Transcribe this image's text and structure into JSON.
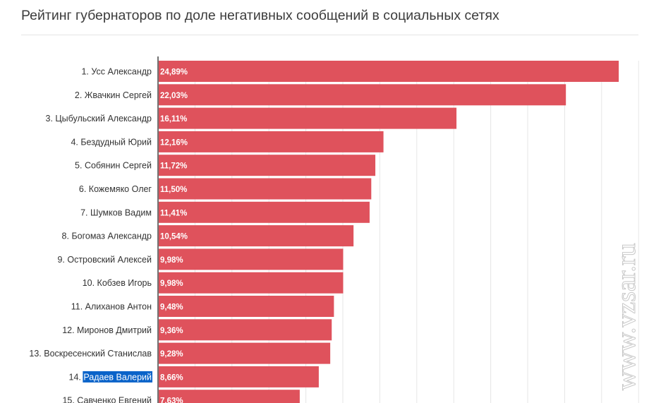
{
  "title": "Рейтинг губернаторов по доле негативных сообщений в социальных сетях",
  "watermark": "www.vzsar.ru",
  "colors": {
    "bar": "#df525c",
    "grid": "#e6e6e6",
    "axis": "#444444",
    "selection": "#0a63c9"
  },
  "selected_category_index": 13,
  "chart_data": {
    "type": "bar",
    "orientation": "horizontal",
    "title": "Рейтинг губернаторов по доле негативных сообщений в социальных сетях",
    "xlabel": "",
    "ylabel": "",
    "xlim": [
      0,
      26
    ],
    "grid": true,
    "categories": [
      "1. Усс Александр",
      "2. Жвачкин Сергей",
      "3. Цыбульский Александр",
      "4. Бездудный Юрий",
      "5. Собянин Сергей",
      "6. Кожемяко Олег",
      "7. Шумков Вадим",
      "8. Богомаз Александр",
      "9. Островский Алексей",
      "10. Кобзев Игорь",
      "11. Алиханов Антон",
      "12. Миронов Дмитрий",
      "13. Воскресенский Станислав",
      "14. Радаев Валерий",
      "15. Савченко Евгений"
    ],
    "values": [
      24.89,
      22.03,
      16.11,
      12.16,
      11.72,
      11.5,
      11.41,
      10.54,
      9.98,
      9.98,
      9.48,
      9.36,
      9.28,
      8.66,
      7.63
    ],
    "value_labels": [
      "24,89%",
      "22,03%",
      "16,11%",
      "12,16%",
      "11,72%",
      "11,50%",
      "11,41%",
      "10,54%",
      "9,98%",
      "9,98%",
      "9,48%",
      "9,36%",
      "9,28%",
      "8,66%",
      "7,63%"
    ]
  }
}
